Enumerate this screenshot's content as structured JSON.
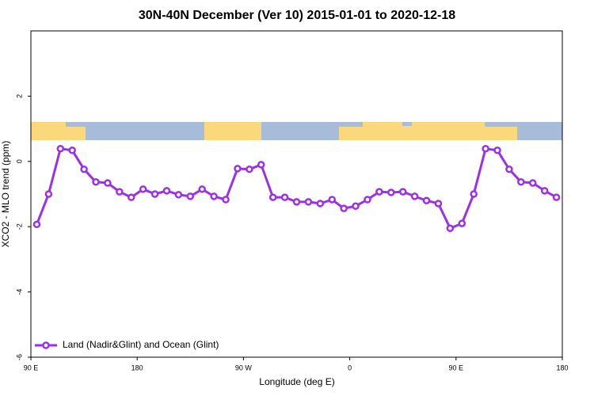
{
  "chart_data": {
    "type": "line",
    "title": "30N-40N December (Ver 10)   2015-01-01 to 2020-12-18",
    "xlabel": "Longitude (deg E)",
    "ylabel": "XCO2 - MLO trend (ppm)",
    "x": [
      95,
      105,
      115,
      125,
      135,
      145,
      155,
      165,
      175,
      185,
      195,
      205,
      215,
      225,
      235,
      245,
      255,
      265,
      275,
      285,
      295,
      305,
      315,
      325,
      335,
      345,
      355,
      365,
      375,
      385,
      395,
      405,
      415,
      425,
      435,
      445,
      455,
      465,
      475,
      485,
      495,
      505,
      515,
      525,
      535
    ],
    "series": [
      {
        "name": "Land (Nadir&Glint) and Ocean (Glint)",
        "color": "#9b30e8",
        "values": [
          -1.93,
          -1.0,
          0.39,
          0.34,
          -0.24,
          -0.63,
          -0.66,
          -0.93,
          -1.1,
          -0.85,
          -1.0,
          -0.9,
          -1.02,
          -1.07,
          -0.85,
          -1.07,
          -1.17,
          -0.22,
          -0.24,
          -0.1,
          -1.1,
          -1.1,
          -1.24,
          -1.24,
          -1.29,
          -1.17,
          -1.44,
          -1.37,
          -1.17,
          -0.93,
          -0.95,
          -0.93,
          -1.07,
          -1.2,
          -1.29,
          -2.05,
          -1.9,
          -1.0,
          0.39,
          0.34,
          -0.24,
          -0.63,
          -0.66,
          -0.9,
          -1.1
        ]
      }
    ],
    "xlim": [
      90,
      540
    ],
    "xticks": [
      {
        "value": 90,
        "label": "90 E"
      },
      180,
      {
        "value": 270,
        "label": "90 W"
      },
      {
        "value": 360,
        "label": "0"
      },
      {
        "value": 450,
        "label": "90 E"
      },
      {
        "value": 540,
        "label": "180"
      }
    ],
    "ylim": [
      -6,
      4
    ],
    "yticks": [
      -6,
      -4,
      -2,
      0,
      2
    ],
    "legend": "bottom-left"
  }
}
